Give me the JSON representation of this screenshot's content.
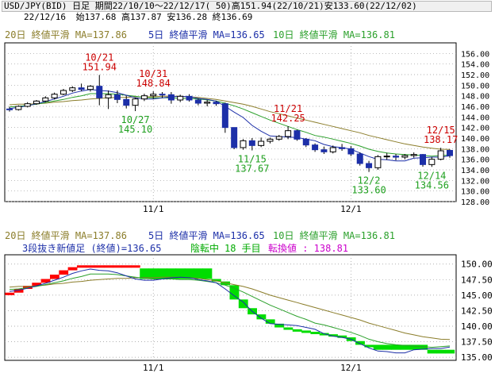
{
  "header": {
    "line1": "USD/JPY(BID) 日足 期間22/10/10～22/12/17( 50)高151.94(22/10/21)安133.60(22/12/02)",
    "date": "22/12/16",
    "ohlc": "始137.68 高137.87 安136.28 終136.69"
  },
  "legend_top": {
    "ma20": "20日 終値平滑 MA=137.86",
    "ma5": "5日 終値平滑 MA=136.65",
    "ma10": "10日 終値平滑 MA=136.81"
  },
  "legend_bottom": {
    "ma20": "20日 終値平滑 MA=137.86",
    "ma5": "5日 終値平滑 MA=136.65",
    "ma10": "10日 終値平滑 MA=136.81",
    "breakout": "3段抜き新値足 (終値)=136.65",
    "state": "陰転中",
    "count": "18 手目",
    "reversal": "転換値 : 138.81"
  },
  "colors": {
    "ma20": "#8b7d2a",
    "ma5": "#1c2fa8",
    "ma10": "#2ba02b",
    "up_candle": "#ffffff",
    "down_candle": "#1c2fa8",
    "bull_box": "#ff0000",
    "bear_box": "#00dd00",
    "high_label": "#cc0000",
    "low_label": "#1fa01f"
  },
  "chart_data": [
    {
      "type": "candlestick",
      "ylim": [
        128,
        158
      ],
      "yticks": [
        "128.00",
        "130.00",
        "132.00",
        "134.00",
        "136.00",
        "138.00",
        "140.00",
        "142.00",
        "144.00",
        "146.00",
        "148.00",
        "150.00",
        "152.00",
        "154.00",
        "156.00"
      ],
      "xticks": [
        "11/1",
        "12/1"
      ],
      "candles": [
        [
          145.5,
          145.9,
          145.0,
          145.4
        ],
        [
          145.4,
          146.2,
          145.2,
          146.0
        ],
        [
          146.0,
          146.8,
          145.8,
          146.5
        ],
        [
          146.5,
          147.2,
          146.3,
          147.0
        ],
        [
          147.0,
          147.9,
          146.8,
          147.6
        ],
        [
          147.6,
          148.6,
          147.3,
          148.3
        ],
        [
          148.3,
          149.3,
          148.1,
          149.0
        ],
        [
          149.0,
          149.8,
          148.7,
          149.5
        ],
        [
          149.5,
          150.3,
          148.9,
          149.2
        ],
        [
          149.2,
          150.0,
          148.8,
          149.8
        ],
        [
          149.8,
          151.94,
          146.2,
          147.6
        ],
        [
          147.6,
          149.0,
          145.5,
          148.2
        ],
        [
          148.2,
          149.0,
          146.6,
          147.3
        ],
        [
          147.3,
          148.0,
          145.6,
          146.2
        ],
        [
          146.2,
          147.6,
          145.1,
          147.4
        ],
        [
          147.4,
          148.4,
          147.0,
          148.0
        ],
        [
          148.0,
          148.84,
          147.4,
          148.3
        ],
        [
          148.3,
          148.7,
          147.6,
          148.2
        ],
        [
          148.2,
          148.7,
          146.5,
          147.2
        ],
        [
          147.2,
          148.2,
          146.8,
          147.9
        ],
        [
          147.9,
          148.3,
          146.9,
          147.2
        ],
        [
          147.2,
          147.5,
          146.2,
          146.6
        ],
        [
          146.6,
          147.2,
          146.0,
          146.8
        ],
        [
          146.8,
          147.0,
          146.1,
          146.5
        ],
        [
          146.5,
          146.7,
          141.0,
          142.0
        ],
        [
          142.0,
          142.0,
          137.9,
          138.2
        ],
        [
          138.2,
          139.8,
          137.8,
          139.5
        ],
        [
          139.5,
          140.0,
          137.67,
          138.6
        ],
        [
          138.6,
          140.1,
          138.3,
          139.4
        ],
        [
          139.4,
          140.1,
          139.0,
          139.8
        ],
        [
          139.8,
          140.6,
          139.5,
          140.3
        ],
        [
          140.3,
          142.25,
          139.8,
          141.4
        ],
        [
          141.4,
          141.6,
          139.5,
          139.8
        ],
        [
          139.8,
          140.0,
          138.3,
          138.7
        ],
        [
          138.7,
          139.0,
          137.4,
          137.8
        ],
        [
          137.8,
          138.4,
          137.0,
          137.4
        ],
        [
          137.4,
          138.6,
          137.1,
          138.2
        ],
        [
          138.2,
          138.9,
          137.6,
          138.0
        ],
        [
          138.0,
          138.5,
          136.6,
          137.0
        ],
        [
          137.0,
          137.3,
          134.8,
          135.2
        ],
        [
          135.2,
          135.7,
          133.6,
          134.4
        ],
        [
          134.4,
          136.8,
          134.0,
          136.5
        ],
        [
          136.5,
          137.2,
          135.9,
          136.6
        ],
        [
          136.6,
          137.0,
          135.8,
          136.4
        ],
        [
          136.4,
          137.0,
          136.0,
          136.7
        ],
        [
          136.7,
          137.3,
          136.3,
          136.9
        ],
        [
          136.9,
          137.0,
          134.6,
          135.0
        ],
        [
          135.0,
          136.4,
          134.56,
          136.0
        ],
        [
          136.0,
          138.17,
          135.8,
          137.6
        ],
        [
          137.68,
          137.87,
          136.28,
          136.69
        ]
      ],
      "ma5": [
        145.6,
        145.8,
        146.1,
        146.5,
        146.9,
        147.4,
        147.9,
        148.5,
        148.9,
        149.2,
        149.0,
        148.9,
        148.6,
        148.1,
        147.6,
        147.4,
        147.4,
        147.6,
        147.8,
        147.9,
        147.8,
        147.5,
        147.3,
        147.0,
        146.0,
        144.9,
        143.9,
        142.4,
        141.3,
        140.4,
        140.3,
        140.2,
        140.1,
        139.8,
        139.5,
        138.8,
        138.4,
        138.2,
        137.9,
        137.2,
        136.5,
        136.0,
        135.9,
        135.7,
        135.7,
        136.2,
        136.3,
        136.4,
        136.4,
        136.65
      ],
      "ma10": [
        145.9,
        146.0,
        146.2,
        146.4,
        146.7,
        147.0,
        147.3,
        147.7,
        148.0,
        148.4,
        148.4,
        148.4,
        148.3,
        148.1,
        147.9,
        147.7,
        147.6,
        147.6,
        147.6,
        147.5,
        147.5,
        147.4,
        147.2,
        147.0,
        146.6,
        146.1,
        145.5,
        144.8,
        144.1,
        143.4,
        142.8,
        142.2,
        141.6,
        141.1,
        140.5,
        140.2,
        139.8,
        139.4,
        139.0,
        138.5,
        137.9,
        137.5,
        137.2,
        137.0,
        136.9,
        136.8,
        136.7,
        136.6,
        136.7,
        136.81
      ],
      "ma20": [
        146.3,
        146.4,
        146.4,
        146.5,
        146.6,
        146.8,
        146.9,
        147.1,
        147.2,
        147.4,
        147.5,
        147.6,
        147.7,
        147.7,
        147.8,
        147.8,
        147.8,
        147.9,
        147.9,
        147.9,
        147.8,
        147.7,
        147.5,
        147.3,
        147.0,
        146.7,
        146.4,
        146.0,
        145.5,
        145.0,
        144.6,
        144.2,
        143.8,
        143.4,
        143.0,
        142.6,
        142.2,
        141.8,
        141.4,
        141.0,
        140.5,
        140.1,
        139.7,
        139.3,
        138.9,
        138.6,
        138.3,
        138.1,
        137.9,
        137.86
      ],
      "annotations": [
        {
          "kind": "high",
          "date": "10/21",
          "value": "151.94",
          "i": 10
        },
        {
          "kind": "low",
          "date": "10/27",
          "value": "145.10",
          "i": 14
        },
        {
          "kind": "high",
          "date": "10/31",
          "value": "148.84",
          "i": 16
        },
        {
          "kind": "low",
          "date": "11/15",
          "value": "137.67",
          "i": 27
        },
        {
          "kind": "high",
          "date": "11/21",
          "value": "142.25",
          "i": 31
        },
        {
          "kind": "low",
          "date": "12/2",
          "value": "133.60",
          "i": 40
        },
        {
          "kind": "low",
          "date": "12/14",
          "value": "134.56",
          "i": 47
        },
        {
          "kind": "high",
          "date": "12/15",
          "value": "138.17",
          "i": 48
        }
      ]
    },
    {
      "type": "new-price-bars",
      "ylim": [
        134.5,
        151.5
      ],
      "yticks": [
        "135.00",
        "137.50",
        "140.00",
        "142.50",
        "145.00",
        "147.50",
        "150.00"
      ],
      "xticks": [
        "11/1",
        "12/1"
      ],
      "boxes": [
        {
          "i": 0,
          "dir": "up",
          "from": 145.0,
          "to": 145.4
        },
        {
          "i": 1,
          "dir": "up",
          "from": 145.4,
          "to": 146.0
        },
        {
          "i": 2,
          "dir": "up",
          "from": 146.0,
          "to": 146.5
        },
        {
          "i": 3,
          "dir": "up",
          "from": 146.5,
          "to": 147.0
        },
        {
          "i": 4,
          "dir": "up",
          "from": 147.0,
          "to": 147.6
        },
        {
          "i": 5,
          "dir": "up",
          "from": 147.6,
          "to": 148.3
        },
        {
          "i": 6,
          "dir": "up",
          "from": 148.3,
          "to": 149.0
        },
        {
          "i": 7,
          "dir": "up",
          "from": 149.0,
          "to": 149.5
        },
        {
          "i": 8,
          "dir": "up",
          "from": 149.5,
          "to": 149.8
        },
        {
          "i": 9,
          "dir": "up",
          "from": 149.5,
          "to": 149.8
        },
        {
          "i": 10,
          "dir": "up",
          "from": 149.5,
          "to": 149.8
        },
        {
          "i": 11,
          "dir": "up",
          "from": 149.5,
          "to": 149.8
        },
        {
          "i": 12,
          "dir": "up",
          "from": 149.5,
          "to": 149.8
        },
        {
          "i": 13,
          "dir": "up",
          "from": 149.5,
          "to": 149.8
        },
        {
          "i": 14,
          "dir": "up",
          "from": 149.5,
          "to": 149.8
        },
        {
          "i": 15,
          "dir": "down",
          "from": 149.3,
          "to": 147.6
        },
        {
          "i": 16,
          "dir": "down",
          "from": 149.3,
          "to": 147.6
        },
        {
          "i": 17,
          "dir": "down",
          "from": 149.3,
          "to": 147.6
        },
        {
          "i": 18,
          "dir": "down",
          "from": 149.3,
          "to": 147.6
        },
        {
          "i": 19,
          "dir": "down",
          "from": 149.3,
          "to": 147.6
        },
        {
          "i": 20,
          "dir": "down",
          "from": 149.3,
          "to": 147.6
        },
        {
          "i": 21,
          "dir": "down",
          "from": 149.3,
          "to": 147.6
        },
        {
          "i": 22,
          "dir": "down",
          "from": 149.3,
          "to": 147.6
        },
        {
          "i": 23,
          "dir": "down",
          "from": 147.6,
          "to": 147.2
        },
        {
          "i": 24,
          "dir": "down",
          "from": 147.2,
          "to": 146.6
        },
        {
          "i": 25,
          "dir": "down",
          "from": 146.6,
          "to": 144.3
        },
        {
          "i": 26,
          "dir": "down",
          "from": 144.3,
          "to": 142.9
        },
        {
          "i": 27,
          "dir": "down",
          "from": 142.9,
          "to": 141.9
        },
        {
          "i": 28,
          "dir": "down",
          "from": 141.9,
          "to": 141.1
        },
        {
          "i": 29,
          "dir": "down",
          "from": 141.1,
          "to": 140.4
        },
        {
          "i": 30,
          "dir": "down",
          "from": 140.4,
          "to": 139.8
        },
        {
          "i": 31,
          "dir": "down",
          "from": 139.8,
          "to": 139.5
        },
        {
          "i": 32,
          "dir": "down",
          "from": 139.5,
          "to": 139.3
        },
        {
          "i": 33,
          "dir": "down",
          "from": 139.3,
          "to": 139.1
        },
        {
          "i": 34,
          "dir": "down",
          "from": 139.1,
          "to": 138.9
        },
        {
          "i": 35,
          "dir": "down",
          "from": 138.9,
          "to": 138.7
        },
        {
          "i": 36,
          "dir": "down",
          "from": 138.7,
          "to": 138.5
        },
        {
          "i": 37,
          "dir": "down",
          "from": 138.5,
          "to": 138.2
        },
        {
          "i": 38,
          "dir": "down",
          "from": 138.2,
          "to": 137.6
        },
        {
          "i": 39,
          "dir": "down",
          "from": 137.6,
          "to": 137.0
        },
        {
          "i": 40,
          "dir": "down",
          "from": 137.0,
          "to": 136.6
        },
        {
          "i": 41,
          "dir": "down",
          "from": 137.0,
          "to": 136.2
        },
        {
          "i": 42,
          "dir": "down",
          "from": 137.0,
          "to": 136.2
        },
        {
          "i": 43,
          "dir": "down",
          "from": 137.0,
          "to": 136.2
        },
        {
          "i": 44,
          "dir": "down",
          "from": 137.0,
          "to": 136.2
        },
        {
          "i": 45,
          "dir": "down",
          "from": 137.0,
          "to": 136.2
        },
        {
          "i": 46,
          "dir": "down",
          "from": 137.0,
          "to": 136.2
        },
        {
          "i": 47,
          "dir": "down",
          "from": 136.2,
          "to": 135.6
        },
        {
          "i": 48,
          "dir": "down",
          "from": 136.2,
          "to": 135.6
        },
        {
          "i": 49,
          "dir": "down",
          "from": 136.2,
          "to": 135.6
        }
      ],
      "ma5": [
        145.6,
        145.8,
        146.1,
        146.5,
        146.9,
        147.4,
        147.9,
        148.5,
        148.9,
        149.2,
        149.0,
        148.9,
        148.6,
        148.1,
        147.6,
        147.4,
        147.4,
        147.6,
        147.8,
        147.9,
        147.8,
        147.5,
        147.3,
        147.0,
        146.0,
        144.9,
        143.9,
        142.4,
        141.3,
        140.4,
        140.3,
        140.2,
        140.1,
        139.8,
        139.5,
        138.8,
        138.4,
        138.2,
        137.9,
        137.2,
        136.5,
        136.0,
        135.9,
        135.7,
        135.7,
        136.2,
        136.3,
        136.4,
        136.4,
        136.65
      ],
      "ma10": [
        145.9,
        146.0,
        146.2,
        146.4,
        146.7,
        147.0,
        147.3,
        147.7,
        148.0,
        148.4,
        148.4,
        148.4,
        148.3,
        148.1,
        147.9,
        147.7,
        147.6,
        147.6,
        147.6,
        147.5,
        147.5,
        147.4,
        147.2,
        147.0,
        146.6,
        146.1,
        145.5,
        144.8,
        144.1,
        143.4,
        142.8,
        142.2,
        141.6,
        141.1,
        140.5,
        140.2,
        139.8,
        139.4,
        139.0,
        138.5,
        137.9,
        137.5,
        137.2,
        137.0,
        136.9,
        136.8,
        136.7,
        136.6,
        136.7,
        136.81
      ],
      "ma20": [
        146.3,
        146.4,
        146.4,
        146.5,
        146.6,
        146.8,
        146.9,
        147.1,
        147.2,
        147.4,
        147.5,
        147.6,
        147.7,
        147.7,
        147.8,
        147.8,
        147.8,
        147.9,
        147.9,
        147.9,
        147.8,
        147.7,
        147.5,
        147.3,
        147.0,
        146.7,
        146.4,
        146.0,
        145.5,
        145.0,
        144.6,
        144.2,
        143.8,
        143.4,
        143.0,
        142.6,
        142.2,
        141.8,
        141.4,
        141.0,
        140.5,
        140.1,
        139.7,
        139.3,
        138.9,
        138.6,
        138.3,
        138.1,
        137.9,
        137.86
      ]
    }
  ]
}
